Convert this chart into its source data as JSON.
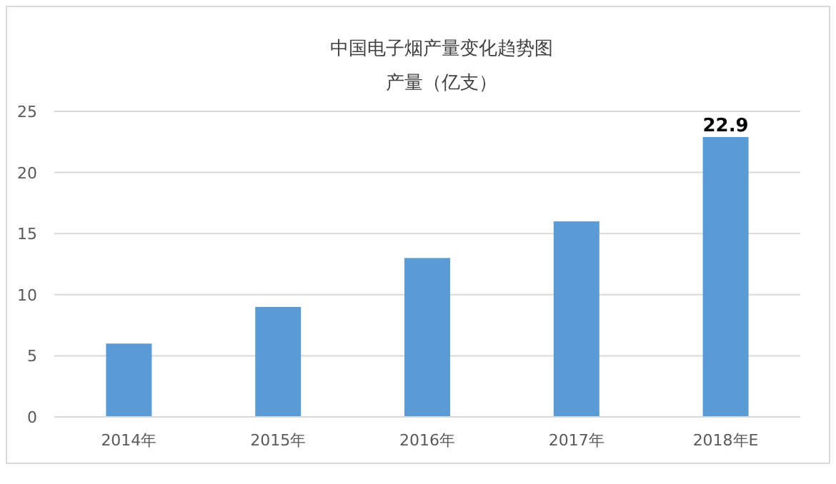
{
  "chart_data": {
    "type": "bar",
    "title": "中国电子烟产量变化趋势图",
    "subtitle": "产量（亿支）",
    "categories": [
      "2014年",
      "2015年",
      "2016年",
      "2017年",
      "2018年E"
    ],
    "values": [
      6,
      9,
      13,
      16,
      22.9
    ],
    "value_labels": [
      null,
      null,
      null,
      null,
      "22.9"
    ],
    "color": "#5b9bd5",
    "ylim": [
      0,
      25
    ],
    "yticks": [
      0,
      5,
      10,
      15,
      20,
      25
    ],
    "grid": "y"
  }
}
